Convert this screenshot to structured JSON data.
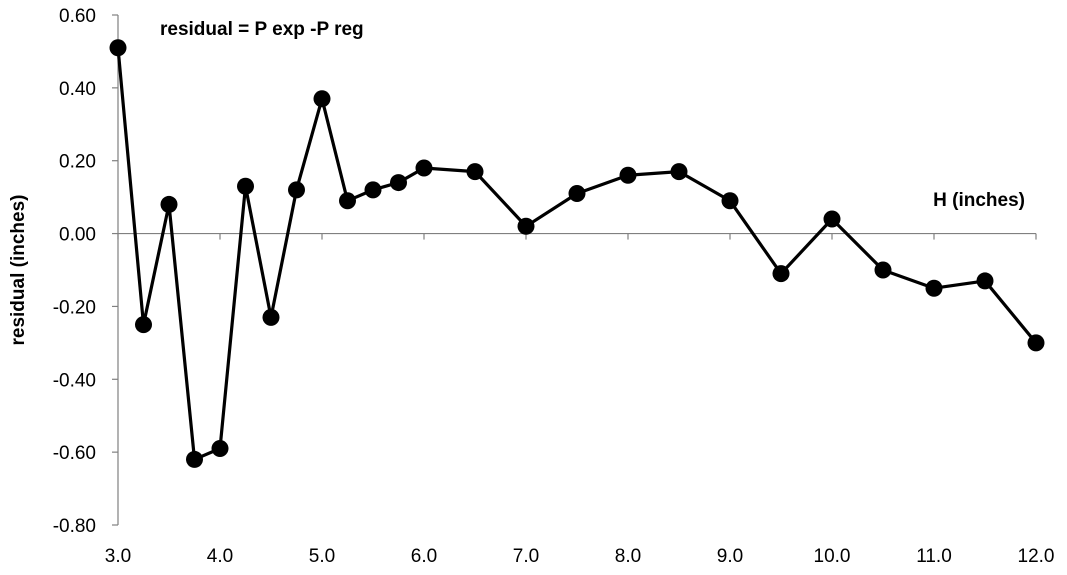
{
  "chart_data": {
    "type": "line",
    "title": "",
    "ylabel": "residual (inches)",
    "xlabel": "H (inches)",
    "annotation": "residual = P exp -P reg",
    "xlim": [
      3.0,
      12.0
    ],
    "ylim": [
      -0.8,
      0.6
    ],
    "x_ticks": [
      3.0,
      4.0,
      5.0,
      6.0,
      7.0,
      8.0,
      9.0,
      10.0,
      11.0,
      12.0
    ],
    "x_tick_labels": [
      "3.0",
      "4.0",
      "5.0",
      "6.0",
      "7.0",
      "8.0",
      "9.0",
      "10.0",
      "11.0",
      "12.0"
    ],
    "y_ticks": [
      -0.8,
      -0.6,
      -0.4,
      -0.2,
      0.0,
      0.2,
      0.4,
      0.6
    ],
    "y_tick_labels": [
      "-0.80",
      "-0.60",
      "-0.40",
      "-0.20",
      "0.00",
      "0.20",
      "0.40",
      "0.60"
    ],
    "grid": false,
    "series": [
      {
        "color": "#000000",
        "x": [
          3.0,
          3.25,
          3.5,
          3.75,
          4.0,
          4.25,
          4.5,
          4.75,
          5.0,
          5.25,
          5.5,
          5.75,
          6.0,
          6.5,
          7.0,
          7.5,
          8.0,
          8.5,
          9.0,
          9.5,
          10.0,
          10.5,
          11.0,
          11.5,
          12.0
        ],
        "y": [
          0.51,
          -0.25,
          0.08,
          -0.62,
          -0.59,
          0.13,
          -0.23,
          0.12,
          0.37,
          0.09,
          0.12,
          0.14,
          0.18,
          0.17,
          0.02,
          0.11,
          0.16,
          0.17,
          0.09,
          -0.11,
          0.04,
          -0.1,
          -0.15,
          -0.13,
          -0.3
        ]
      }
    ]
  }
}
